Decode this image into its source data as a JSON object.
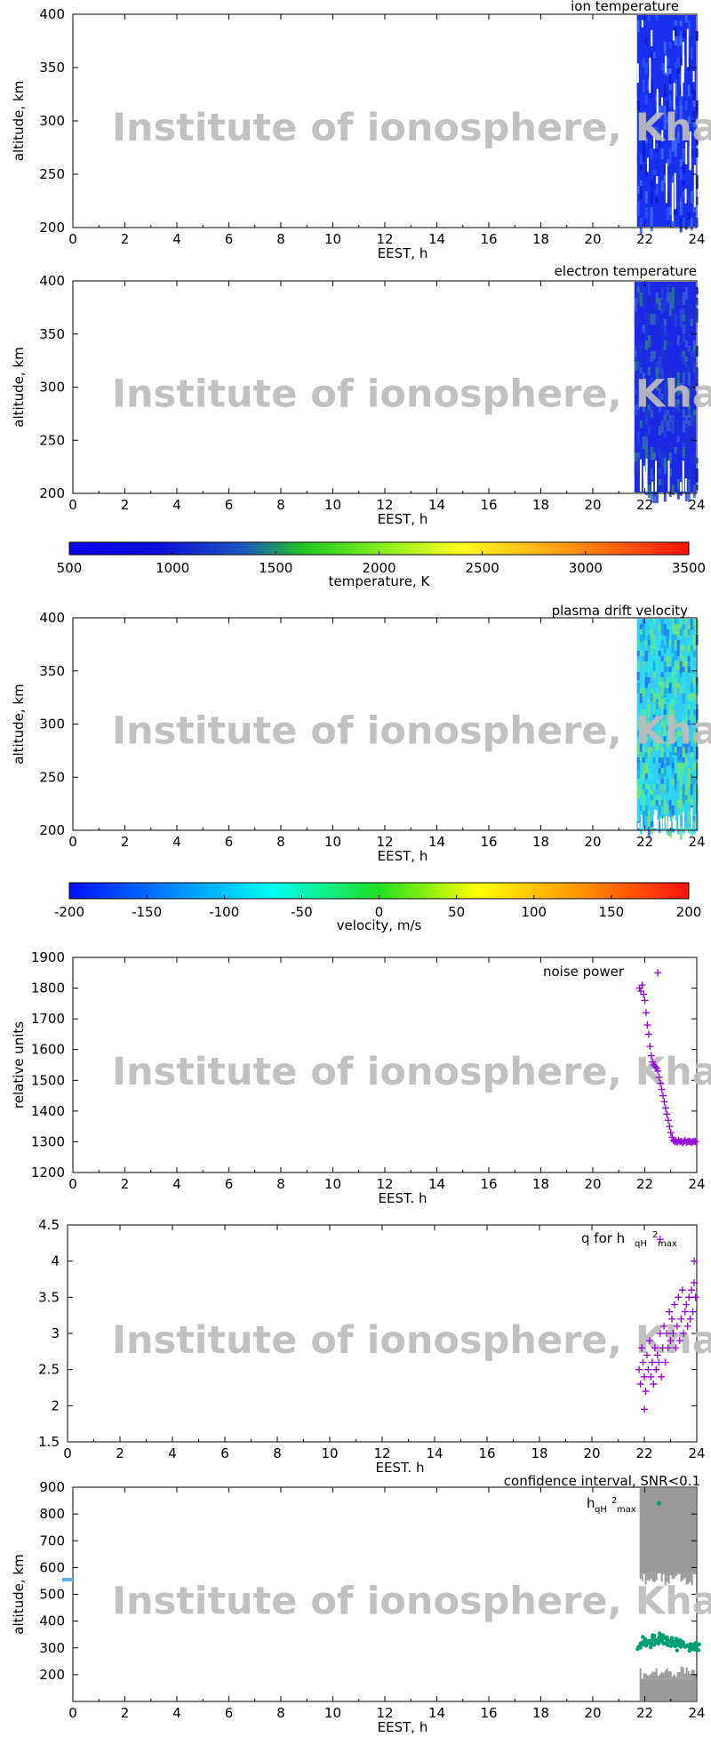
{
  "watermark": "Institute of ionosphere, Kharkiv",
  "colors": {
    "ion_fill": "#1a2ff0",
    "electron_fill": "#1c28e6",
    "drift_fill": "#2fd3ef",
    "noise_marker": "#9400d3",
    "q_marker": "#9400d3",
    "confidence_fill": "#9a9a9a",
    "hmax_marker": "#009e73",
    "edge_marker": "#56b4e9"
  },
  "chart_data": [
    {
      "id": "ion-temperature",
      "type": "heatmap",
      "title": "ion temperature",
      "xlabel": "EEST, h",
      "ylabel": "altitude, km",
      "xlim": [
        0,
        24
      ],
      "ylim": [
        200,
        400
      ],
      "xticks": [
        "0",
        "2",
        "4",
        "6",
        "8",
        "10",
        "12",
        "14",
        "16",
        "18",
        "20",
        "22",
        "24"
      ],
      "yticks": [
        "200",
        "250",
        "300",
        "350",
        "400"
      ],
      "data_window_hours": [
        21.7,
        24
      ],
      "dominant_value_K": 800
    },
    {
      "id": "electron-temperature",
      "type": "heatmap",
      "title": "electron temperature",
      "xlabel": "EEST, h",
      "ylabel": "altitude, km",
      "xlim": [
        0,
        24
      ],
      "ylim": [
        200,
        400
      ],
      "xticks": [
        "0",
        "2",
        "4",
        "6",
        "8",
        "10",
        "12",
        "14",
        "16",
        "18",
        "20",
        "22",
        "24"
      ],
      "yticks": [
        "200",
        "250",
        "300",
        "350",
        "400"
      ],
      "data_window_hours": [
        21.6,
        24
      ],
      "dominant_value_K": 800
    },
    {
      "id": "temperature-colorbar",
      "type": "colorbar",
      "label": "temperature, K",
      "range": [
        500,
        3500
      ],
      "ticks": [
        "500",
        "1000",
        "1500",
        "2000",
        "2500",
        "3000",
        "3500"
      ]
    },
    {
      "id": "plasma-drift-velocity",
      "type": "heatmap",
      "title": "plasma drift velocity",
      "xlabel": "EEST, h",
      "ylabel": "altitude, km",
      "xlim": [
        0,
        24
      ],
      "ylim": [
        200,
        400
      ],
      "xticks": [
        "0",
        "2",
        "4",
        "6",
        "8",
        "10",
        "12",
        "14",
        "16",
        "18",
        "20",
        "22",
        "24"
      ],
      "yticks": [
        "200",
        "250",
        "300",
        "350",
        "400"
      ],
      "data_window_hours": [
        21.7,
        24
      ],
      "dominant_value_ms": -60
    },
    {
      "id": "velocity-colorbar",
      "type": "colorbar",
      "label": "velocity, m/s",
      "range": [
        -200,
        200
      ],
      "ticks": [
        "-200",
        "-150",
        "-100",
        "-50",
        "0",
        "50",
        "100",
        "150",
        "200"
      ]
    },
    {
      "id": "noise-power",
      "type": "scatter",
      "title": "noise power",
      "xlabel": "EEST. h",
      "ylabel": "relative units",
      "xlim": [
        0,
        24
      ],
      "ylim": [
        1200,
        1900
      ],
      "xticks": [
        "0",
        "2",
        "4",
        "6",
        "8",
        "10",
        "12",
        "14",
        "16",
        "18",
        "20",
        "22",
        "24"
      ],
      "yticks": [
        "1200",
        "1300",
        "1400",
        "1500",
        "1600",
        "1700",
        "1800",
        "1900"
      ],
      "x": [
        21.8,
        21.85,
        21.9,
        21.95,
        22.0,
        22.05,
        22.1,
        22.15,
        22.2,
        22.25,
        22.3,
        22.35,
        22.4,
        22.45,
        22.5,
        22.55,
        22.6,
        22.65,
        22.7,
        22.75,
        22.8,
        22.85,
        22.9,
        22.95,
        23.0,
        23.05,
        23.1,
        23.15,
        23.2,
        23.25,
        23.3,
        23.35,
        23.4,
        23.45,
        23.5,
        23.55,
        23.6,
        23.65,
        23.7,
        23.75,
        23.8,
        23.85,
        23.9,
        23.95,
        22.5
      ],
      "y": [
        1800,
        1790,
        1810,
        1780,
        1760,
        1720,
        1680,
        1650,
        1610,
        1580,
        1560,
        1550,
        1545,
        1540,
        1530,
        1510,
        1490,
        1470,
        1450,
        1430,
        1410,
        1390,
        1370,
        1350,
        1330,
        1315,
        1305,
        1300,
        1302,
        1298,
        1305,
        1300,
        1302,
        1296,
        1300,
        1305,
        1298,
        1300,
        1302,
        1300,
        1298,
        1300,
        1302,
        1300,
        1850
      ]
    },
    {
      "id": "q-for-hqh2max",
      "type": "scatter",
      "title_main": "q for h",
      "title_sub": "qH",
      "title_sup": "2",
      "title_sub2": "max",
      "xlabel": "EEST. h",
      "ylabel": "",
      "xlim": [
        0,
        24
      ],
      "ylim": [
        1.5,
        4.5
      ],
      "xticks": [
        "0",
        "2",
        "4",
        "6",
        "8",
        "10",
        "12",
        "14",
        "16",
        "18",
        "20",
        "22",
        "24"
      ],
      "yticks": [
        "1.5",
        "2",
        "2.5",
        "3",
        "3.5",
        "4",
        "4.5"
      ],
      "x": [
        21.8,
        21.85,
        21.9,
        21.95,
        22.0,
        22.05,
        22.1,
        22.15,
        22.2,
        22.25,
        22.3,
        22.35,
        22.4,
        22.45,
        22.5,
        22.55,
        22.6,
        22.65,
        22.7,
        22.75,
        22.8,
        22.85,
        22.9,
        22.95,
        23.0,
        23.05,
        23.1,
        23.15,
        23.2,
        23.25,
        23.3,
        23.35,
        23.4,
        23.45,
        23.5,
        23.55,
        23.6,
        23.65,
        23.7,
        23.75,
        23.8,
        23.85,
        23.9,
        23.95,
        22.0,
        22.6,
        23.9
      ],
      "y": [
        2.5,
        2.3,
        2.8,
        2.6,
        2.4,
        2.2,
        2.7,
        2.5,
        2.9,
        2.4,
        2.6,
        2.3,
        2.8,
        2.5,
        2.7,
        2.6,
        3.0,
        2.4,
        2.8,
        3.1,
        2.6,
        3.0,
        2.8,
        3.3,
        2.9,
        3.2,
        3.0,
        3.4,
        2.8,
        3.1,
        3.5,
        2.9,
        3.2,
        3.6,
        3.0,
        3.3,
        3.4,
        3.1,
        3.5,
        3.2,
        3.6,
        3.3,
        3.7,
        3.5,
        1.95,
        4.3,
        4.0
      ]
    },
    {
      "id": "hqh2max-confidence",
      "type": "scatter",
      "title": "confidence interval, SNR<0.1",
      "legend_main": "h",
      "legend_sub": "qH",
      "legend_sup": "2",
      "legend_sub2": "max",
      "xlabel": "EEST, h",
      "ylabel": "altitude, km",
      "xlim": [
        0,
        24
      ],
      "ylim": [
        100,
        900
      ],
      "xticks": [
        "0",
        "2",
        "4",
        "6",
        "8",
        "10",
        "12",
        "14",
        "16",
        "18",
        "20",
        "22",
        "24"
      ],
      "yticks": [
        "200",
        "300",
        "400",
        "500",
        "600",
        "700",
        "800",
        "900"
      ],
      "confidence_bands_km": [
        [
          100,
          185
        ],
        [
          580,
          900
        ]
      ],
      "confidence_window_hours": [
        21.8,
        24
      ],
      "x": [
        21.85,
        21.95,
        22.05,
        22.15,
        22.25,
        22.35,
        22.45,
        22.55,
        22.65,
        22.75,
        22.85,
        22.95,
        23.05,
        23.15,
        23.25,
        23.35,
        23.45,
        23.55,
        23.65,
        23.75,
        23.85,
        23.95,
        22.55
      ],
      "y": [
        315,
        320,
        310,
        325,
        318,
        330,
        322,
        335,
        328,
        340,
        330,
        325,
        320,
        315,
        318,
        310,
        312,
        305,
        308,
        300,
        305,
        302,
        840
      ],
      "edge_point": {
        "x": 0,
        "y": 555
      }
    }
  ]
}
